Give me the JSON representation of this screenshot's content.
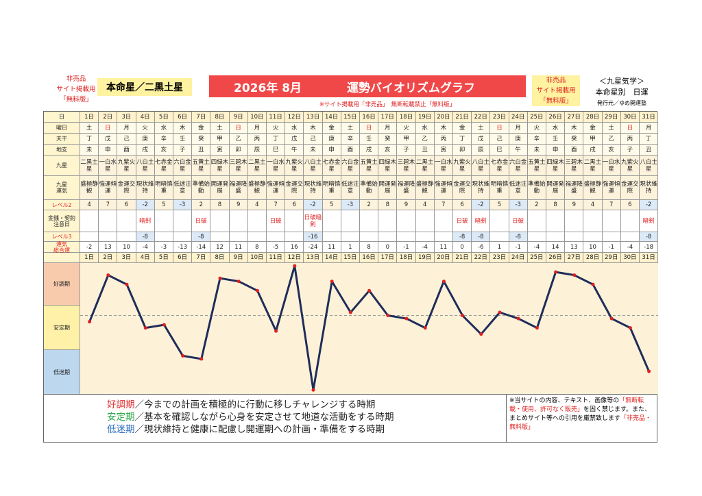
{
  "header": {
    "left_note": [
      "非売品",
      "サイト掲載用",
      "「無料版」"
    ],
    "main_star": "本命星／二黒土星",
    "title_date": "2026年 8月",
    "title": "運勢バイオリズムグラフ",
    "subnote": "※サイト掲載用「非売品」　無断転載禁止「無料版」",
    "right_note": [
      "非売品",
      "サイト掲載用",
      "「無料版」"
    ],
    "school": "＜九星気学＞",
    "subtitle": "本命星別　日運",
    "publisher": "発行元／ゆめ開運塾"
  },
  "table": {
    "labels": [
      "日",
      "曜日",
      "天干",
      "地支",
      "九星",
      "九星\n運気",
      "レベル2",
      "金銭・契約\n注意日",
      "レベル3",
      "運気\n総合運"
    ],
    "days": [
      "1日",
      "2日",
      "3日",
      "4日",
      "5日",
      "6日",
      "7日",
      "8日",
      "9日",
      "10日",
      "11日",
      "12日",
      "13日",
      "14日",
      "15日",
      "16日",
      "17日",
      "18日",
      "19日",
      "20日",
      "21日",
      "22日",
      "23日",
      "24日",
      "25日",
      "26日",
      "27日",
      "28日",
      "29日",
      "30日",
      "31日"
    ],
    "weekdays": [
      "土",
      "日",
      "月",
      "火",
      "水",
      "木",
      "金",
      "土",
      "日",
      "月",
      "火",
      "水",
      "木",
      "金",
      "土",
      "日",
      "月",
      "火",
      "水",
      "木",
      "金",
      "土",
      "日",
      "月",
      "火",
      "水",
      "木",
      "金",
      "土",
      "日",
      "月"
    ],
    "stems": [
      "丁",
      "戊",
      "己",
      "庚",
      "辛",
      "壬",
      "癸",
      "甲",
      "乙",
      "丙",
      "丁",
      "戊",
      "己",
      "庚",
      "辛",
      "壬",
      "癸",
      "甲",
      "乙",
      "丙",
      "丁",
      "戊",
      "己",
      "庚",
      "辛",
      "壬",
      "癸",
      "甲",
      "乙",
      "丙",
      "丁"
    ],
    "branches": [
      "未",
      "申",
      "酉",
      "戌",
      "亥",
      "子",
      "丑",
      "寅",
      "卯",
      "辰",
      "巳",
      "午",
      "未",
      "申",
      "酉",
      "戌",
      "亥",
      "子",
      "丑",
      "寅",
      "卯",
      "辰",
      "巳",
      "午",
      "未",
      "申",
      "酉",
      "戌",
      "亥",
      "子",
      "丑"
    ],
    "stars": [
      "二黒土星",
      "一白水星",
      "九紫火星",
      "八白土星",
      "七赤金星",
      "六白金星",
      "五黄土星",
      "四緑木星",
      "三碧木星",
      "二黒土星",
      "一白水星",
      "九紫火星",
      "八白土星",
      "七赤金星",
      "六白金星",
      "五黄土星",
      "四緑木星",
      "三碧木星",
      "二黒土星",
      "一白水星",
      "九紫火星",
      "八白土星",
      "七赤金星",
      "六白金星",
      "五黄土星",
      "四緑木星",
      "三碧木星",
      "二黒土星",
      "一白水星",
      "九紫火星",
      "八白土星"
    ],
    "fortunes": [
      "盛極静観",
      "強運傾運",
      "金運交際",
      "現状維持",
      "明暗慎重",
      "低迷注意",
      "準備始動",
      "開運発展",
      "福運隆盛",
      "盛極静観",
      "強運傾運",
      "金運交際",
      "現状維持",
      "明暗慎重",
      "低迷注意",
      "準備始動",
      "開運発展",
      "福運隆盛",
      "盛極静観",
      "強運傾運",
      "金運交際",
      "現状維持",
      "明暗慎重",
      "低迷注意",
      "準備始動",
      "開運発展",
      "福運隆盛",
      "盛極静観",
      "強運傾運",
      "金運交際",
      "現状維持"
    ],
    "level2": [
      4,
      7,
      6,
      -2,
      5,
      -3,
      2,
      8,
      9,
      4,
      7,
      6,
      -2,
      5,
      -3,
      2,
      8,
      9,
      4,
      7,
      6,
      -2,
      5,
      -3,
      2,
      8,
      9,
      4,
      7,
      6,
      -2
    ],
    "caution": [
      null,
      null,
      null,
      "暗剣",
      null,
      null,
      "日破",
      null,
      null,
      null,
      "日破",
      null,
      "日破暗剣",
      null,
      null,
      null,
      null,
      null,
      null,
      null,
      "日破",
      "暗剣",
      null,
      "日破",
      null,
      null,
      null,
      null,
      null,
      null,
      "暗剣"
    ],
    "level3": [
      null,
      null,
      null,
      -8,
      null,
      null,
      -8,
      null,
      null,
      null,
      null,
      null,
      -16,
      null,
      null,
      null,
      null,
      null,
      null,
      null,
      -8,
      -8,
      null,
      -8,
      null,
      null,
      null,
      null,
      null,
      null,
      -8
    ]
  },
  "chart_data": {
    "type": "line",
    "values": [
      -2,
      13,
      10,
      -4,
      -3,
      -13,
      -14,
      12,
      11,
      8,
      -5,
      16,
      -24,
      11,
      1,
      8,
      0,
      -1,
      -4,
      11,
      0,
      -6,
      1,
      -1,
      -4,
      14,
      13,
      10,
      -1,
      -4,
      -18
    ],
    "color": "#1f2d5a",
    "marker_color": "#e02020",
    "ylim": [
      -25.5,
      16.9
    ],
    "reference_line": 0,
    "bands": [
      {
        "label": "好調期",
        "color": "#f8cbad"
      },
      {
        "label": "安定期",
        "color": "#fff2a8"
      },
      {
        "label": "低迷期",
        "color": "#bdd7ee"
      }
    ]
  },
  "legend": [
    {
      "term": "好調期",
      "text": "／今までの計画を積極的に行動に移しチャレンジする時期",
      "color": "#e03030"
    },
    {
      "term": "安定期",
      "text": "／基本を確認しながら心身を安定させて地道な活動をする時期",
      "color": "#2ea84a"
    },
    {
      "term": "低迷期",
      "text": "／現状維持と健康に配慮し開運期への計画・準備をする時期",
      "color": "#3070c0"
    }
  ],
  "notice": [
    {
      "text": "※当サイトの内容、テキスト、画像等の"
    },
    {
      "text": "「無断転載・使用、許可なく販売」",
      "color": "#e02020"
    },
    {
      "text": "を固く禁じます。また、まとめサイト等への引用を厳禁致します"
    },
    {
      "text": "「非売品・無料版」",
      "color": "#e02020"
    }
  ]
}
